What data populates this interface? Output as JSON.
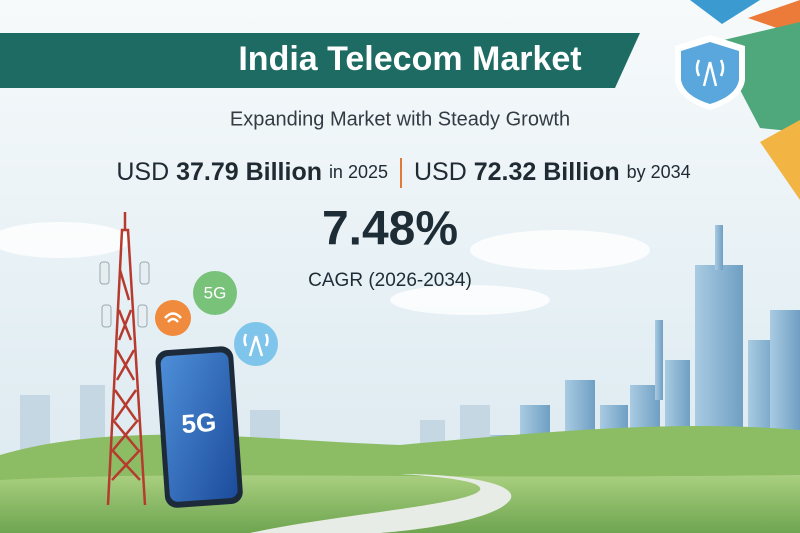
{
  "header": {
    "title": "India Telecom Market",
    "subtitle": "Expanding Market with Steady Growth"
  },
  "stats": {
    "start": {
      "currency": "USD",
      "amount": "37.79 Billion",
      "period": "in 2025"
    },
    "end": {
      "currency": "USD",
      "amount": "72.32 Billion",
      "period": "by 2034"
    },
    "cagr": {
      "value": "7.48%",
      "label": "CAGR (2026-2034)"
    }
  },
  "icons": {
    "bubble_label": "5G",
    "phone_label": "5G"
  }
}
